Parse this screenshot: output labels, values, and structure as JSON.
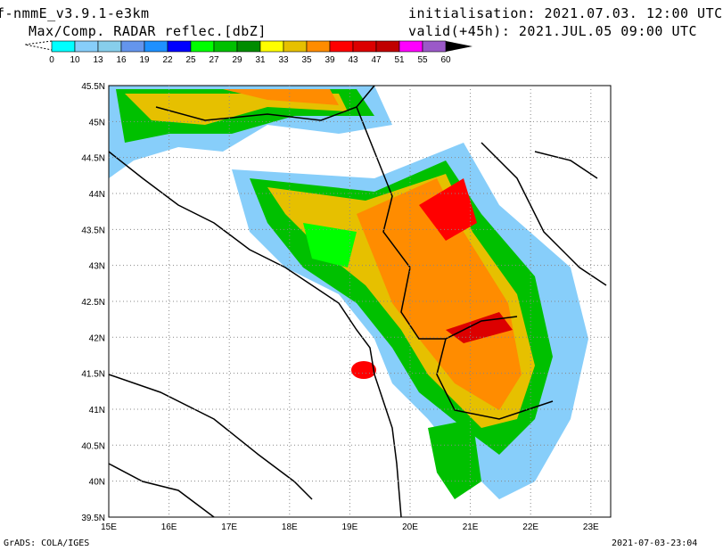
{
  "header": {
    "model": "f-nmmE_v3.9.1-e3km",
    "field": "Max/Comp. RADAR reflec.[dbZ]",
    "init": "initialisation: 2021.07.03. 12:00 UTC",
    "valid": "valid(+45h): 2021.JUL.05 09:00 UTC"
  },
  "colorbar": {
    "labels": [
      "0",
      "10",
      "13",
      "16",
      "19",
      "22",
      "25",
      "27",
      "29",
      "31",
      "33",
      "35",
      "39",
      "43",
      "47",
      "51",
      "55",
      "60"
    ],
    "colors": [
      "#00ffff",
      "#87cefa",
      "#87ceeb",
      "#6495ed",
      "#1e90ff",
      "#0000ff",
      "#00ff00",
      "#00c000",
      "#008c00",
      "#ffff00",
      "#e6c000",
      "#ff8c00",
      "#ff0000",
      "#dc0000",
      "#c00000",
      "#ff00ff",
      "#9b59c8"
    ],
    "over_color": "#000000"
  },
  "axes": {
    "lon_labels": [
      "15E",
      "16E",
      "17E",
      "18E",
      "19E",
      "20E",
      "21E",
      "22E",
      "23E"
    ],
    "lat_labels": [
      "45.5N",
      "45N",
      "44.5N",
      "44N",
      "43.5N",
      "43N",
      "42.5N",
      "42N",
      "41.5N",
      "41N",
      "40.5N",
      "40N",
      "39.5N"
    ]
  },
  "footer": {
    "left": "GrADS: COLA/IGES",
    "right": "2021-07-03-23:04"
  }
}
